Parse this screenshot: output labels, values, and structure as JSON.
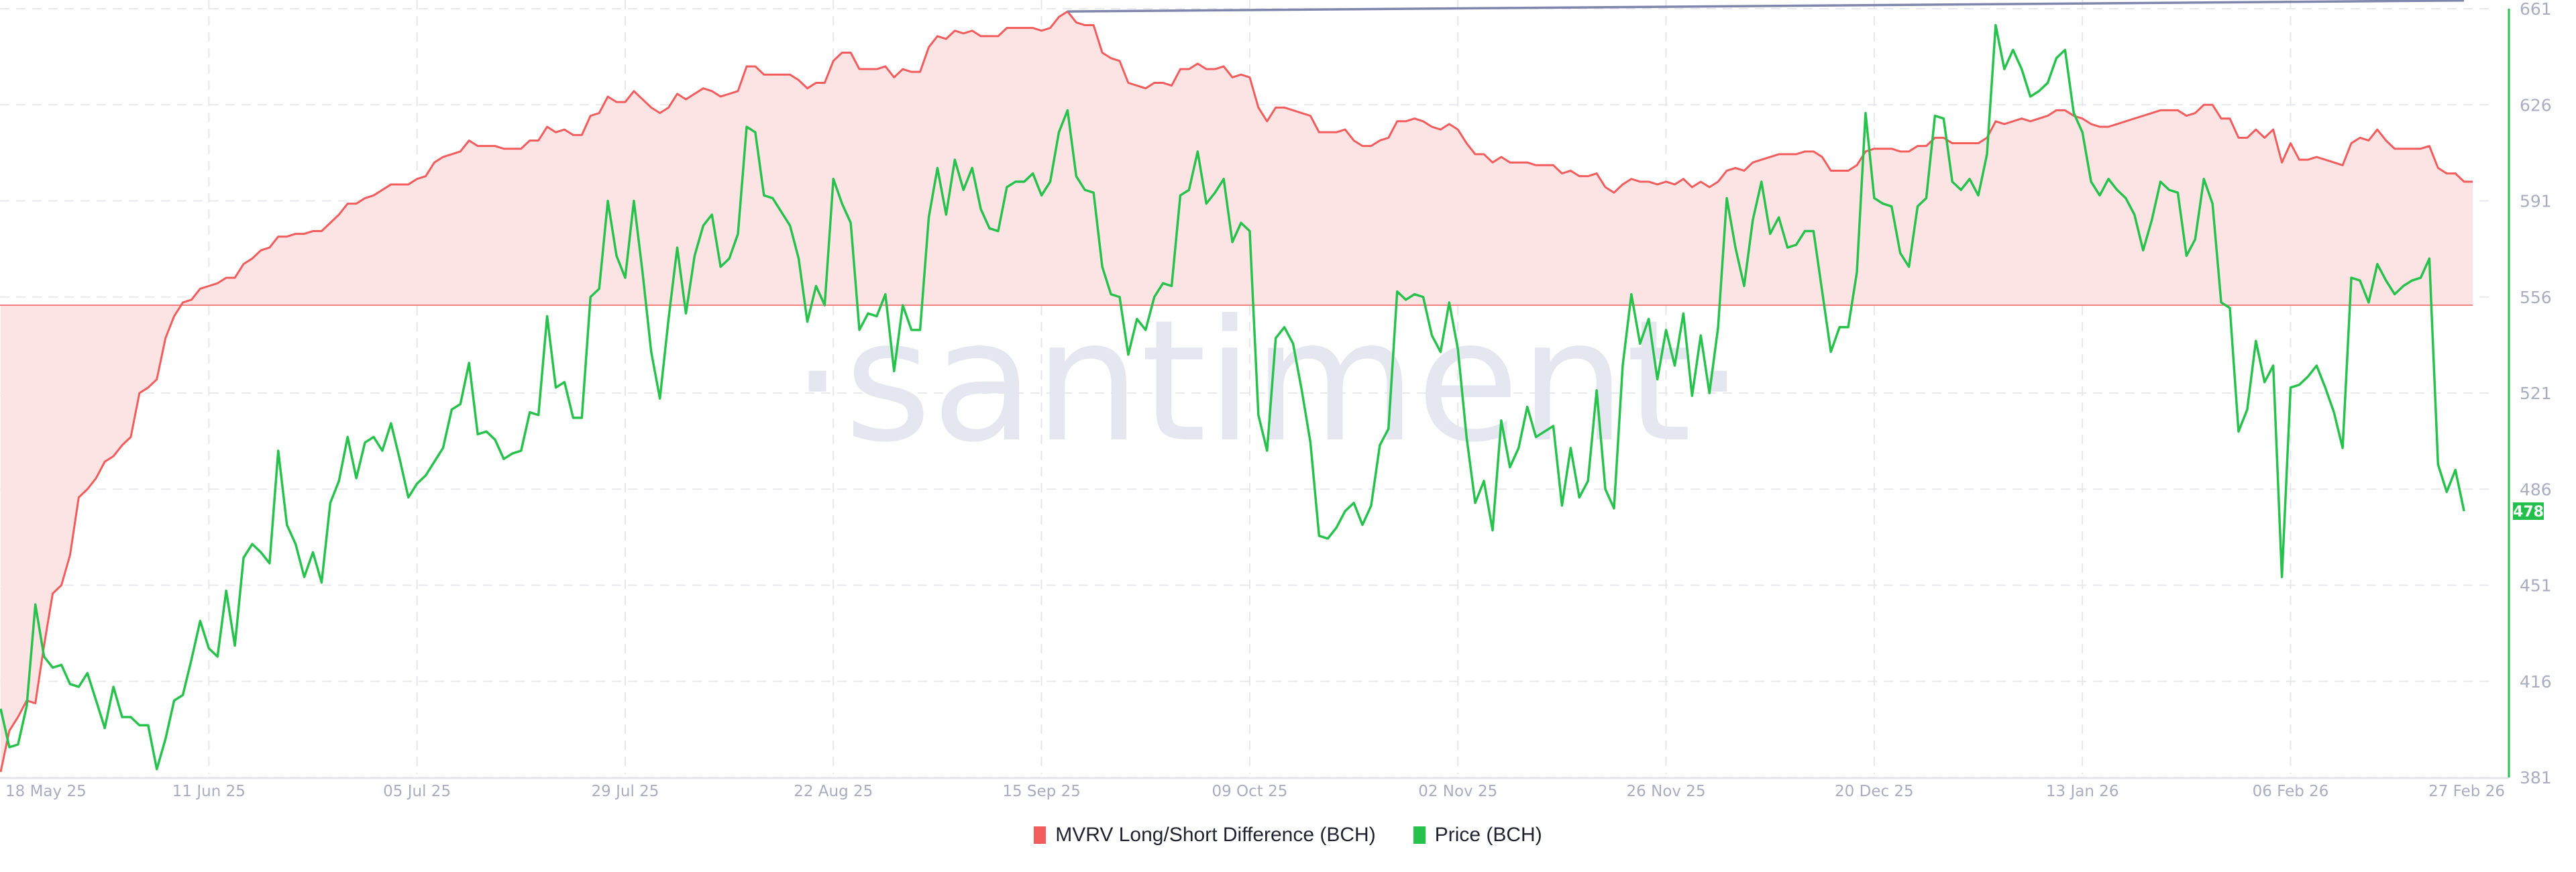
{
  "watermark": "·santiment·",
  "legend": [
    {
      "label": "MVRV Long/Short Difference (BCH)",
      "color": "#f25c5c"
    },
    {
      "label": "Price (BCH)",
      "color": "#26c24c"
    }
  ],
  "chart_data": {
    "type": "line",
    "title": "",
    "xlabel": "",
    "ylabel": "",
    "xlim": [
      "2025-05-18",
      "2026-02-27"
    ],
    "frequency": "daily",
    "ylim": [
      381,
      661
    ],
    "y_axis_side": "right",
    "y_ticks": [
      "661",
      "626",
      "591",
      "556",
      "521",
      "486",
      "451",
      "416",
      "381"
    ],
    "x_ticks": [
      {
        "date": "2025-05-18",
        "label": "18 May 25"
      },
      {
        "date": "2025-06-11",
        "label": "11 Jun 25"
      },
      {
        "date": "2025-07-05",
        "label": "05 Jul 25"
      },
      {
        "date": "2025-07-29",
        "label": "29 Jul 25"
      },
      {
        "date": "2025-08-22",
        "label": "22 Aug 25"
      },
      {
        "date": "2025-09-15",
        "label": "15 Sep 25"
      },
      {
        "date": "2025-10-09",
        "label": "09 Oct 25"
      },
      {
        "date": "2025-11-02",
        "label": "02 Nov 25"
      },
      {
        "date": "2025-11-26",
        "label": "26 Nov 25"
      },
      {
        "date": "2025-12-20",
        "label": "20 Dec 25"
      },
      {
        "date": "2026-01-13",
        "label": "13 Jan 26"
      },
      {
        "date": "2026-02-06",
        "label": "06 Feb 26"
      },
      {
        "date": "2026-02-27",
        "label": "27 Feb 26"
      }
    ],
    "grid": true,
    "legend_position": "bottom-center",
    "last_price_label": "478",
    "series": [
      {
        "name": "MVRV Long/Short Difference (BCH)",
        "color": "#f25c5c",
        "fill": "area-to-zero-line",
        "fill_color": "#fde4e4",
        "zero_line_on_price_scale": 553,
        "values": [
          383,
          398,
          403,
          409,
          408,
          429,
          448,
          451,
          462,
          483,
          486,
          490,
          496,
          498,
          502,
          505,
          521,
          523,
          526,
          541,
          549,
          554,
          555,
          559,
          560,
          561,
          563,
          563,
          568,
          570,
          573,
          574,
          578,
          578,
          579,
          579,
          580,
          580,
          583,
          586,
          590,
          590,
          592,
          593,
          595,
          597,
          597,
          597,
          599,
          600,
          605,
          607,
          608,
          609,
          613,
          611,
          611,
          611,
          610,
          610,
          610,
          613,
          613,
          618,
          616,
          617,
          615,
          615,
          622,
          623,
          629,
          627,
          627,
          631,
          628,
          625,
          623,
          625,
          630,
          628,
          630,
          632,
          631,
          629,
          630,
          631,
          640,
          640,
          637,
          637,
          637,
          637,
          635,
          632,
          634,
          634,
          642,
          645,
          645,
          639,
          639,
          639,
          640,
          636,
          639,
          638,
          638,
          647,
          651,
          650,
          653,
          652,
          653,
          651,
          651,
          651,
          654,
          654,
          654,
          654,
          653,
          654,
          658,
          660,
          656,
          655,
          655,
          645,
          643,
          642,
          634,
          633,
          632,
          634,
          634,
          633,
          639,
          639,
          641,
          639,
          639,
          640,
          636,
          637,
          636,
          625,
          620,
          625,
          625,
          624,
          623,
          622,
          616,
          616,
          616,
          617,
          613,
          611,
          611,
          613,
          614,
          620,
          620,
          621,
          620,
          618,
          617,
          619,
          617,
          612,
          608,
          608,
          605,
          607,
          605,
          605,
          605,
          604,
          604,
          604,
          601,
          602,
          600,
          600,
          601,
          596,
          594,
          597,
          599,
          598,
          598,
          597,
          598,
          597,
          599,
          596,
          598,
          596,
          598,
          602,
          603,
          602,
          605,
          606,
          607,
          608,
          608,
          608,
          609,
          609,
          607,
          602,
          602,
          602,
          604,
          609,
          610,
          610,
          610,
          609,
          609,
          611,
          611,
          614,
          614,
          612,
          612,
          612,
          612,
          614,
          620,
          619,
          620,
          621,
          620,
          621,
          622,
          624,
          624,
          622,
          621,
          619,
          618,
          618,
          619,
          620,
          621,
          622,
          623,
          624,
          624,
          624,
          622,
          623,
          626,
          626,
          621,
          621,
          614,
          614,
          617,
          614,
          617,
          605,
          612,
          606,
          606,
          607,
          606,
          605,
          604,
          612,
          614,
          613,
          617,
          613,
          610,
          610,
          610,
          610,
          611,
          603,
          601,
          601,
          598,
          598
        ]
      },
      {
        "name": "Price (BCH)",
        "color": "#26c24c",
        "values": [
          406,
          392,
          393,
          407,
          444,
          425,
          421,
          422,
          415,
          414,
          419,
          409,
          399,
          414,
          403,
          403,
          400,
          400,
          384,
          395,
          409,
          411,
          424,
          438,
          428,
          425,
          449,
          429,
          461,
          466,
          463,
          459,
          500,
          473,
          466,
          454,
          463,
          452,
          481,
          489,
          505,
          490,
          503,
          505,
          500,
          510,
          497,
          483,
          488,
          491,
          496,
          501,
          515,
          517,
          532,
          506,
          507,
          504,
          497,
          499,
          500,
          514,
          513,
          549,
          523,
          525,
          512,
          512,
          556,
          559,
          591,
          571,
          563,
          591,
          565,
          536,
          519,
          548,
          574,
          550,
          571,
          582,
          586,
          567,
          570,
          579,
          618,
          616,
          593,
          592,
          587,
          582,
          570,
          547,
          560,
          553,
          599,
          590,
          583,
          544,
          550,
          549,
          557,
          529,
          553,
          544,
          544,
          585,
          603,
          586,
          606,
          595,
          603,
          588,
          581,
          580,
          596,
          598,
          598,
          601,
          593,
          598,
          616,
          624,
          600,
          595,
          594,
          567,
          557,
          556,
          535,
          548,
          544,
          556,
          561,
          560,
          593,
          595,
          609,
          590,
          594,
          599,
          576,
          583,
          580,
          513,
          500,
          541,
          545,
          539,
          522,
          503,
          469,
          468,
          472,
          478,
          481,
          473,
          480,
          502,
          508,
          558,
          555,
          557,
          556,
          542,
          536,
          554,
          537,
          505,
          481,
          489,
          471,
          511,
          494,
          501,
          516,
          505,
          507,
          509,
          480,
          501,
          483,
          489,
          522,
          486,
          479,
          531,
          557,
          539,
          548,
          526,
          544,
          531,
          550,
          520,
          542,
          521,
          545,
          592,
          574,
          560,
          584,
          598,
          579,
          585,
          574,
          575,
          580,
          580,
          558,
          536,
          545,
          545,
          565,
          623,
          592,
          590,
          589,
          572,
          567,
          589,
          592,
          622,
          621,
          598,
          595,
          599,
          593,
          608,
          655,
          639,
          646,
          639,
          629,
          631,
          634,
          643,
          646,
          623,
          616,
          598,
          593,
          599,
          595,
          592,
          586,
          573,
          584,
          598,
          595,
          594,
          571,
          577,
          599,
          590,
          554,
          552,
          507,
          515,
          540,
          525,
          531,
          454,
          523,
          524,
          527,
          531,
          523,
          514,
          501,
          563,
          562,
          554,
          568,
          562,
          557,
          560,
          562,
          563,
          570,
          495,
          485,
          493,
          478
        ]
      }
    ],
    "annotations": [
      {
        "type": "trend-line",
        "color": "#7f86ad",
        "from": [
          "2025-09-18",
          660
        ],
        "to": [
          "2026-02-26",
          664
        ]
      }
    ]
  }
}
